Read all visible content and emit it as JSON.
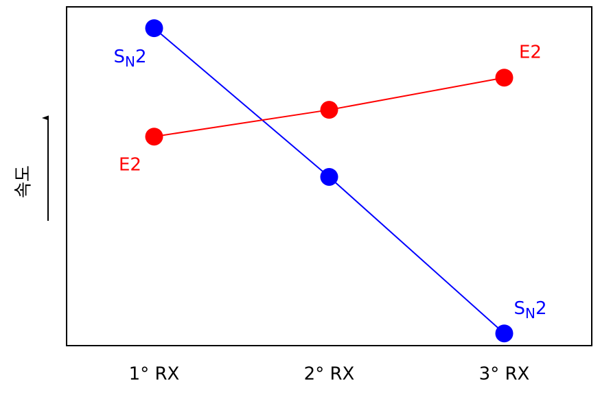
{
  "chart_data": {
    "type": "line",
    "ylabel": "속도",
    "categories": [
      "1° RX",
      "2° RX",
      "3° RX"
    ],
    "ylim": [
      0,
      100
    ],
    "series": [
      {
        "name": "SN2",
        "color": "#0000ff",
        "values": [
          93.7,
          49.8,
          3.6
        ]
      },
      {
        "name": "E2",
        "color": "#ff0000",
        "values": [
          61.7,
          69.6,
          79.1
        ]
      }
    ]
  }
}
